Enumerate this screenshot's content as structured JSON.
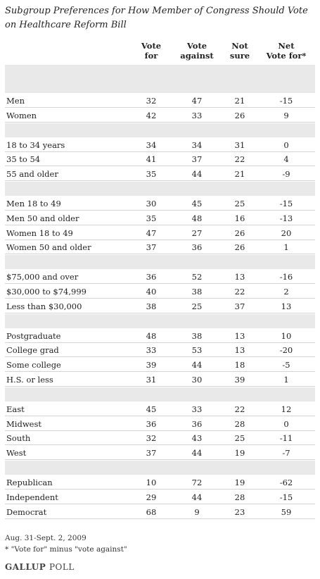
{
  "title": "Subgroup Preferences for How Member of Congress Should Vote on Healthcare Reform Bill",
  "headers": {
    "vote_for": [
      "Vote",
      "for"
    ],
    "vote_against": [
      "Vote",
      "against"
    ],
    "not_sure": [
      "Not",
      "sure"
    ],
    "net": [
      "Net",
      "Vote for*"
    ],
    "pct": "%"
  },
  "chart_data": {
    "type": "table",
    "columns": [
      "Vote for",
      "Vote against",
      "Not sure",
      "Net Vote for*"
    ],
    "groups": [
      [
        {
          "label": "Men",
          "values": [
            "32",
            "47",
            "21",
            "-15"
          ]
        },
        {
          "label": "Women",
          "values": [
            "42",
            "33",
            "26",
            "9"
          ]
        }
      ],
      [
        {
          "label": "18 to 34 years",
          "values": [
            "34",
            "34",
            "31",
            "0"
          ]
        },
        {
          "label": "35 to 54",
          "values": [
            "41",
            "37",
            "22",
            "4"
          ]
        },
        {
          "label": "55 and older",
          "values": [
            "35",
            "44",
            "21",
            "-9"
          ]
        }
      ],
      [
        {
          "label": "Men 18 to 49",
          "values": [
            "30",
            "45",
            "25",
            "-15"
          ]
        },
        {
          "label": "Men 50 and older",
          "values": [
            "35",
            "48",
            "16",
            "-13"
          ]
        },
        {
          "label": "Women 18 to 49",
          "values": [
            "47",
            "27",
            "26",
            "20"
          ]
        },
        {
          "label": "Women 50 and older",
          "values": [
            "37",
            "36",
            "26",
            "1"
          ]
        }
      ],
      [
        {
          "label": "$75,000 and over",
          "values": [
            "36",
            "52",
            "13",
            "-16"
          ]
        },
        {
          "label": "$30,000 to $74,999",
          "values": [
            "40",
            "38",
            "22",
            "2"
          ]
        },
        {
          "label": "Less than $30,000",
          "values": [
            "38",
            "25",
            "37",
            "13"
          ]
        }
      ],
      [
        {
          "label": "Postgraduate",
          "values": [
            "48",
            "38",
            "13",
            "10"
          ]
        },
        {
          "label": "College grad",
          "values": [
            "33",
            "53",
            "13",
            "-20"
          ]
        },
        {
          "label": "Some college",
          "values": [
            "39",
            "44",
            "18",
            "-5"
          ]
        },
        {
          "label": "H.S. or less",
          "values": [
            "31",
            "30",
            "39",
            "1"
          ]
        }
      ],
      [
        {
          "label": "East",
          "values": [
            "45",
            "33",
            "22",
            "12"
          ]
        },
        {
          "label": "Midwest",
          "values": [
            "36",
            "36",
            "28",
            "0"
          ]
        },
        {
          "label": "South",
          "values": [
            "32",
            "43",
            "25",
            "-11"
          ]
        },
        {
          "label": "West",
          "values": [
            "37",
            "44",
            "19",
            "-7"
          ]
        }
      ],
      [
        {
          "label": "Republican",
          "values": [
            "10",
            "72",
            "19",
            "-62"
          ]
        },
        {
          "label": "Independent",
          "values": [
            "29",
            "44",
            "28",
            "-15"
          ]
        },
        {
          "label": "Democrat",
          "values": [
            "68",
            "9",
            "23",
            "59"
          ]
        }
      ]
    ]
  },
  "footer": {
    "date": "Aug. 31-Sept. 2, 2009",
    "note": "* \"Vote for\" minus \"vote against\""
  },
  "logo": {
    "brand": "GALLUP",
    "suffix": "POLL"
  }
}
